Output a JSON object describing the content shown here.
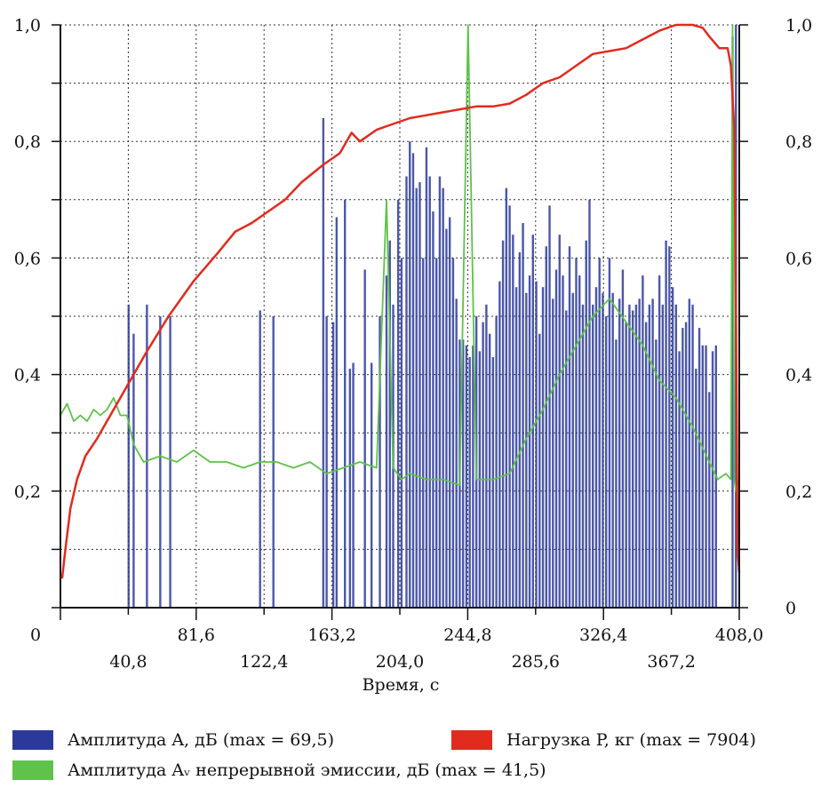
{
  "chart_data": {
    "type": "bar",
    "title": "",
    "xlabel": "Время, с",
    "xlim": [
      0,
      408
    ],
    "x_ticks_upper": [
      "0",
      "81,6",
      "163,2",
      "244,8",
      "326,4",
      "408,0"
    ],
    "x_ticks_lower": [
      "40,8",
      "122,4",
      "204,0",
      "285,6",
      "367,2"
    ],
    "ylim": [
      0,
      1
    ],
    "y_ticks_left": [
      "0,2",
      "0,4",
      "0,6",
      "0,8",
      "1,0"
    ],
    "y_ticks_right": [
      "0",
      "0,2",
      "0,4",
      "0,6",
      "0,8",
      "1,0"
    ],
    "grid": true,
    "legend_position": "bottom",
    "series": [
      {
        "name": "Амплитуда A, дБ (max = 69,5)",
        "kind": "bars",
        "color": "#2b3a9a",
        "x": [
          41,
          44,
          52,
          60,
          66,
          120,
          128,
          158,
          160,
          164,
          166,
          171,
          174,
          176,
          183,
          187,
          192,
          196,
          198,
          200,
          203,
          205,
          208,
          210,
          212,
          214,
          216,
          218,
          220,
          222,
          224,
          226,
          228,
          230,
          232,
          234,
          236,
          238,
          240,
          242,
          244,
          246,
          248,
          250,
          252,
          254,
          256,
          258,
          260,
          262,
          264,
          266,
          268,
          270,
          272,
          274,
          276,
          278,
          280,
          282,
          284,
          286,
          288,
          290,
          292,
          294,
          296,
          298,
          300,
          302,
          304,
          306,
          308,
          310,
          312,
          314,
          316,
          318,
          320,
          322,
          324,
          326,
          328,
          330,
          332,
          334,
          336,
          338,
          340,
          342,
          344,
          346,
          348,
          350,
          352,
          354,
          356,
          358,
          360,
          362,
          364,
          366,
          368,
          370,
          372,
          374,
          376,
          378,
          380,
          382,
          384,
          386,
          388,
          390,
          392,
          394,
          404,
          406
        ],
        "values": [
          0.52,
          0.47,
          0.52,
          0.5,
          0.5,
          0.51,
          0.5,
          0.84,
          0.5,
          0.49,
          0.67,
          0.7,
          0.41,
          0.42,
          0.58,
          0.42,
          0.5,
          0.57,
          0.63,
          0.52,
          0.7,
          0.6,
          0.74,
          0.8,
          0.78,
          0.72,
          0.73,
          0.6,
          0.79,
          0.74,
          0.68,
          0.6,
          0.74,
          0.72,
          0.65,
          0.67,
          0.6,
          0.53,
          0.46,
          0.46,
          0.45,
          0.43,
          0.45,
          0.5,
          0.44,
          0.49,
          0.52,
          0.47,
          0.43,
          0.5,
          0.56,
          0.63,
          0.72,
          0.69,
          0.64,
          0.55,
          0.61,
          0.66,
          0.54,
          0.57,
          0.64,
          0.56,
          0.47,
          0.55,
          0.62,
          0.69,
          0.53,
          0.58,
          0.64,
          0.57,
          0.51,
          0.62,
          0.54,
          0.6,
          0.57,
          0.52,
          0.63,
          0.7,
          0.52,
          0.55,
          0.6,
          0.54,
          0.5,
          0.6,
          0.54,
          0.46,
          0.53,
          0.58,
          0.49,
          0.52,
          0.51,
          0.52,
          0.53,
          0.57,
          0.49,
          0.52,
          0.53,
          0.46,
          0.57,
          0.52,
          0.63,
          0.62,
          0.55,
          0.52,
          0.44,
          0.48,
          0.49,
          0.53,
          0.52,
          0.41,
          0.48,
          0.45,
          0.45,
          0.37,
          0.44,
          0.45,
          0.98,
          1.0
        ]
      },
      {
        "name": "Нагрузка P, кг (max = 7904)",
        "kind": "line",
        "color": "#e22a1e",
        "x": [
          1,
          3,
          6,
          10,
          15,
          22,
          30,
          40,
          52,
          65,
          80,
          95,
          105,
          115,
          125,
          135,
          145,
          158,
          168,
          175,
          180,
          190,
          200,
          210,
          220,
          230,
          240,
          250,
          260,
          270,
          280,
          290,
          300,
          310,
          320,
          330,
          340,
          350,
          360,
          370,
          380,
          386,
          390,
          396,
          401,
          403,
          405,
          406,
          407,
          408
        ],
        "values": [
          0.05,
          0.1,
          0.17,
          0.22,
          0.26,
          0.29,
          0.33,
          0.38,
          0.44,
          0.5,
          0.56,
          0.61,
          0.645,
          0.66,
          0.68,
          0.7,
          0.73,
          0.76,
          0.78,
          0.815,
          0.8,
          0.82,
          0.83,
          0.84,
          0.845,
          0.85,
          0.855,
          0.86,
          0.86,
          0.865,
          0.88,
          0.9,
          0.91,
          0.93,
          0.95,
          0.955,
          0.96,
          0.975,
          0.99,
          1.0,
          1.0,
          0.995,
          0.98,
          0.96,
          0.96,
          0.93,
          0.82,
          0.5,
          0.1,
          0.06
        ]
      },
      {
        "name": "Амплитуда Aᵥ непрерывной эмиссии, дБ (max = 41,5)",
        "kind": "line",
        "color": "#5fc24a",
        "x": [
          0,
          4,
          8,
          12,
          16,
          20,
          24,
          28,
          32,
          36,
          40,
          44,
          50,
          60,
          70,
          80,
          90,
          100,
          110,
          120,
          130,
          140,
          150,
          160,
          170,
          180,
          190,
          196,
          200,
          205,
          210,
          220,
          230,
          240,
          245,
          250,
          260,
          270,
          280,
          290,
          300,
          310,
          320,
          330,
          340,
          350,
          360,
          370,
          380,
          390,
          395,
          400,
          403,
          404,
          405,
          406,
          408
        ],
        "values": [
          0.33,
          0.35,
          0.32,
          0.33,
          0.32,
          0.34,
          0.33,
          0.34,
          0.36,
          0.33,
          0.33,
          0.28,
          0.25,
          0.26,
          0.25,
          0.27,
          0.25,
          0.25,
          0.24,
          0.25,
          0.25,
          0.24,
          0.25,
          0.23,
          0.24,
          0.25,
          0.24,
          0.7,
          0.24,
          0.22,
          0.23,
          0.22,
          0.22,
          0.21,
          1.0,
          0.22,
          0.22,
          0.23,
          0.29,
          0.34,
          0.4,
          0.45,
          0.5,
          0.53,
          0.49,
          0.45,
          0.39,
          0.36,
          0.31,
          0.25,
          0.22,
          0.23,
          0.22,
          1.0,
          0.22,
          0.2,
          0.22
        ]
      }
    ]
  }
}
